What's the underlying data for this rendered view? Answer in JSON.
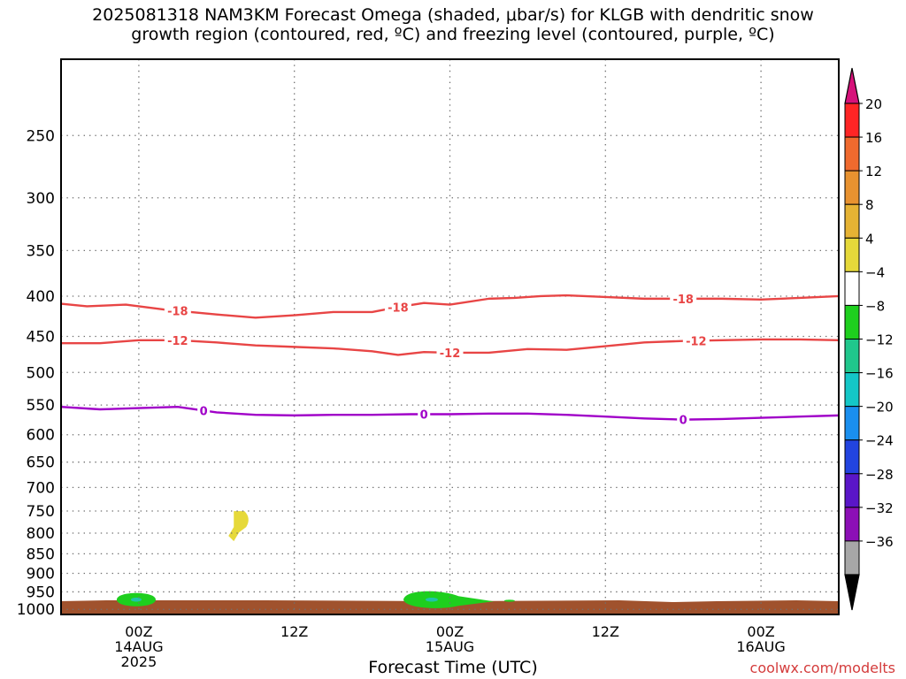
{
  "title": {
    "line1": "2025081318 NAM3KM Forecast Omega (shaded, μbar/s) for KLGB with dendritic snow",
    "line2": "growth region (contoured, red, ºC) and freezing level (contoured, purple, ºC)"
  },
  "xlabel": "Forecast Time (UTC)",
  "credit": "coolwx.com/modelts",
  "chart_data": {
    "type": "area",
    "x_unit": "hours since 2025081318 UTC",
    "xlim": [
      0,
      60
    ],
    "x_ticks": [
      {
        "x": 6,
        "label": "00Z",
        "sub1": "14AUG",
        "sub2": "2025"
      },
      {
        "x": 18,
        "label": "12Z",
        "sub1": "",
        "sub2": ""
      },
      {
        "x": 30,
        "label": "00Z",
        "sub1": "15AUG",
        "sub2": ""
      },
      {
        "x": 42,
        "label": "12Z",
        "sub1": "",
        "sub2": ""
      },
      {
        "x": 54,
        "label": "00Z",
        "sub1": "16AUG",
        "sub2": ""
      }
    ],
    "y_ticks": [
      250,
      300,
      350,
      400,
      450,
      500,
      550,
      600,
      650,
      700,
      750,
      800,
      850,
      900,
      950,
      1000
    ],
    "ylim": [
      1015,
      200
    ],
    "contours": [
      {
        "name": "-18",
        "color": "#e84545",
        "points": [
          [
            0,
            409
          ],
          [
            2,
            412
          ],
          [
            5,
            410
          ],
          [
            8,
            416
          ],
          [
            12,
            422
          ],
          [
            15,
            426
          ],
          [
            18,
            423
          ],
          [
            21,
            419
          ],
          [
            24,
            419
          ],
          [
            26,
            413
          ],
          [
            28,
            408
          ],
          [
            30,
            410
          ],
          [
            33,
            403
          ],
          [
            35,
            402
          ],
          [
            37,
            400
          ],
          [
            39,
            399
          ],
          [
            42,
            401
          ],
          [
            45,
            403
          ],
          [
            48,
            403
          ],
          [
            51,
            403
          ],
          [
            54,
            404
          ],
          [
            57,
            402
          ],
          [
            60,
            400
          ]
        ],
        "labels": [
          9,
          26,
          48
        ]
      },
      {
        "name": "-12",
        "color": "#e84545",
        "points": [
          [
            0,
            459
          ],
          [
            3,
            459
          ],
          [
            6,
            455
          ],
          [
            9,
            455
          ],
          [
            12,
            458
          ],
          [
            15,
            462
          ],
          [
            18,
            464
          ],
          [
            21,
            466
          ],
          [
            24,
            470
          ],
          [
            26,
            475
          ],
          [
            28,
            471
          ],
          [
            30,
            472
          ],
          [
            33,
            472
          ],
          [
            36,
            467
          ],
          [
            39,
            468
          ],
          [
            42,
            463
          ],
          [
            45,
            458
          ],
          [
            48,
            456
          ],
          [
            51,
            455
          ],
          [
            54,
            454
          ],
          [
            57,
            454
          ],
          [
            60,
            455
          ]
        ],
        "labels": [
          9,
          30,
          49
        ]
      },
      {
        "name": "0",
        "color": "#a000c8",
        "points": [
          [
            0,
            553
          ],
          [
            3,
            557
          ],
          [
            6,
            555
          ],
          [
            9,
            553
          ],
          [
            12,
            562
          ],
          [
            15,
            566
          ],
          [
            18,
            567
          ],
          [
            21,
            566
          ],
          [
            24,
            566
          ],
          [
            27,
            565
          ],
          [
            30,
            565
          ],
          [
            33,
            564
          ],
          [
            36,
            564
          ],
          [
            39,
            566
          ],
          [
            42,
            569
          ],
          [
            45,
            572
          ],
          [
            48,
            574
          ],
          [
            51,
            573
          ],
          [
            54,
            571
          ],
          [
            57,
            569
          ],
          [
            60,
            567
          ]
        ],
        "labels": [
          11,
          28,
          48
        ]
      }
    ],
    "shaded_regions": [
      {
        "value": "4 to 8",
        "color": "#e6d93a",
        "center_x": 13.6,
        "center_p": 790
      },
      {
        "value": "-8 to -4",
        "color": "#1ecf1e",
        "center_x": 5.8,
        "center_p": 972
      },
      {
        "value": "-12 to -8",
        "color": "#20c3a8",
        "center_x": 5.8,
        "center_p": 972
      },
      {
        "value": "-8 to -4",
        "color": "#1ecf1e",
        "center_x": 28.6,
        "center_p": 972
      },
      {
        "value": "-12 to -8",
        "color": "#20c3a8",
        "center_x": 28.6,
        "center_p": 972
      },
      {
        "value": "-8 to -4",
        "color": "#1ecf1e",
        "center_x": 34.6,
        "center_p": 975
      }
    ],
    "terrain_color": "#a0522d",
    "colorbar": {
      "levels": [
        "20",
        "16",
        "12",
        "8",
        "4",
        "−4",
        "−8",
        "−12",
        "−16",
        "−20",
        "−24",
        "−28",
        "−32",
        "−36"
      ],
      "colors": [
        "#ff2525",
        "#f06a2e",
        "#e89230",
        "#e6b334",
        "#e6d93a",
        "#ffffff",
        "#1ecf1e",
        "#20c78c",
        "#14c7c7",
        "#1a8fef",
        "#2244e0",
        "#5a16c8",
        "#8c0fb6",
        "#a7a7a7"
      ],
      "top_color": "#d6127a",
      "bottom_color": "#000000"
    }
  }
}
